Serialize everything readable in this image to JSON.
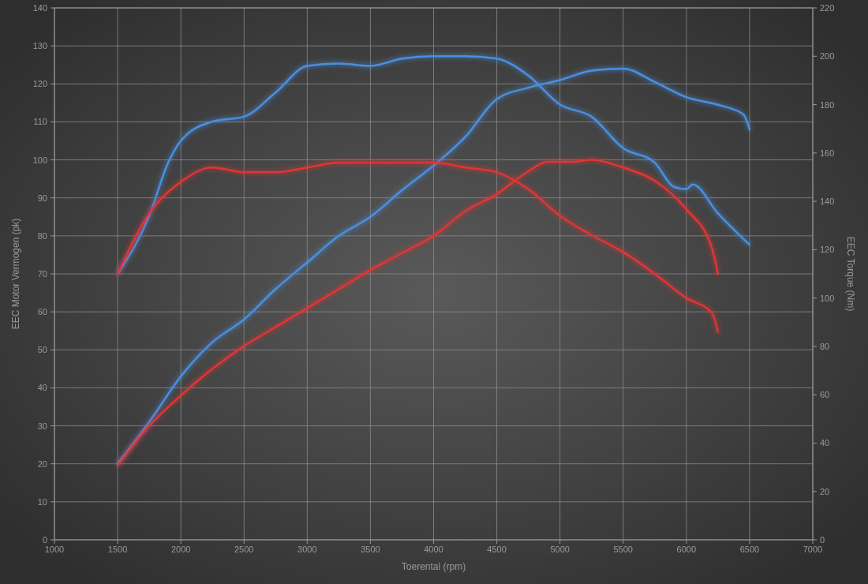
{
  "chart_data": {
    "type": "line",
    "xlabel": "Toerental (rpm)",
    "ylabel": "EEC Motor Vermogen (pk)",
    "y2label": "EEC Torque (Nm)",
    "xlim": [
      1000,
      7000
    ],
    "xticks": [
      1000,
      1500,
      2000,
      2500,
      3000,
      3500,
      4000,
      4500,
      5000,
      5500,
      6000,
      6500,
      7000
    ],
    "ylim": [
      0,
      140
    ],
    "yticks": [
      0,
      10,
      20,
      30,
      40,
      50,
      60,
      70,
      80,
      90,
      100,
      110,
      120,
      130,
      140
    ],
    "y2lim": [
      0,
      220
    ],
    "y2ticks": [
      0,
      20,
      40,
      60,
      80,
      100,
      120,
      140,
      160,
      180,
      200,
      220
    ],
    "grid": true,
    "line_style": "solid",
    "series": [
      {
        "color": "#4a8fe0",
        "x": [
          1500,
          1750,
          2000,
          2250,
          2500,
          2750,
          3000,
          3250,
          3500,
          3750,
          4000,
          4250,
          4500,
          4750,
          5000,
          5250,
          5500,
          5750,
          6000,
          6250,
          6450,
          6500
        ],
        "values": [
          20,
          31,
          43,
          52,
          58,
          66,
          73,
          80,
          85,
          92,
          98.5,
          106,
          116,
          119,
          121,
          123.5,
          124,
          120.5,
          116.5,
          114.5,
          112,
          108
        ]
      },
      {
        "color": "#e03535",
        "x": [
          1500,
          1750,
          2000,
          2250,
          2500,
          2750,
          3000,
          3250,
          3500,
          3750,
          4000,
          4250,
          4500,
          4750,
          4900,
          5100,
          5250,
          5500,
          5750,
          6000,
          6200,
          6250
        ],
        "values": [
          19.5,
          30,
          38,
          45,
          51,
          56,
          61,
          66,
          71,
          75.5,
          80,
          86.5,
          91,
          97,
          99.5,
          99.5,
          100,
          98,
          94.5,
          87,
          77,
          70
        ]
      },
      {
        "color": "#4a8fe0",
        "axis": "y2",
        "x": [
          1500,
          1750,
          1900,
          2000,
          2250,
          2500,
          2750,
          3000,
          3250,
          3500,
          3750,
          4000,
          4250,
          4500,
          4750,
          5000,
          5250,
          5500,
          5750,
          5900,
          6000,
          6050,
          6250,
          6500
        ],
        "values": [
          110,
          134,
          156,
          165,
          173,
          175,
          185,
          196,
          197,
          196,
          199,
          200,
          200,
          199,
          192,
          180,
          175,
          162,
          156,
          146,
          145,
          147,
          135,
          122
        ]
      },
      {
        "color": "#e03535",
        "axis": "y2",
        "x": [
          1500,
          1750,
          2000,
          2250,
          2500,
          2750,
          3000,
          3250,
          3500,
          4000,
          4250,
          4500,
          4750,
          5000,
          5250,
          5500,
          5750,
          6000,
          6200,
          6250
        ],
        "values": [
          110,
          135,
          148,
          154,
          152,
          152,
          154,
          156,
          156,
          156,
          154,
          152,
          145,
          134,
          126,
          119,
          110,
          100,
          94,
          86
        ]
      }
    ]
  }
}
